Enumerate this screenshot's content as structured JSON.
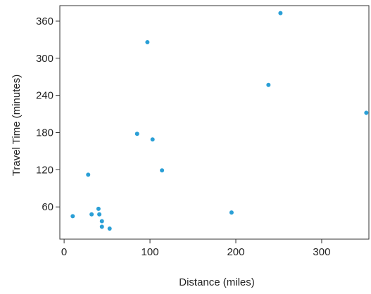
{
  "chart_data": {
    "type": "scatter",
    "xlabel": "Distance (miles)",
    "ylabel": "Travel Time (minutes)",
    "xlim": [
      -5,
      355
    ],
    "ylim": [
      8,
      385
    ],
    "x_ticks": [
      0,
      100,
      200,
      300
    ],
    "y_ticks": [
      60,
      120,
      180,
      240,
      300,
      360
    ],
    "grid": false,
    "legend": "none",
    "point_color": "#2a9fd6",
    "series": [
      {
        "x": [
          10,
          28,
          32,
          40,
          41,
          44,
          44,
          53,
          85,
          97,
          103,
          114,
          195,
          238,
          252,
          352
        ],
        "y": [
          45,
          112,
          48,
          57,
          48,
          37,
          28,
          25,
          178,
          326,
          169,
          119,
          51,
          257,
          373,
          212
        ]
      }
    ]
  }
}
